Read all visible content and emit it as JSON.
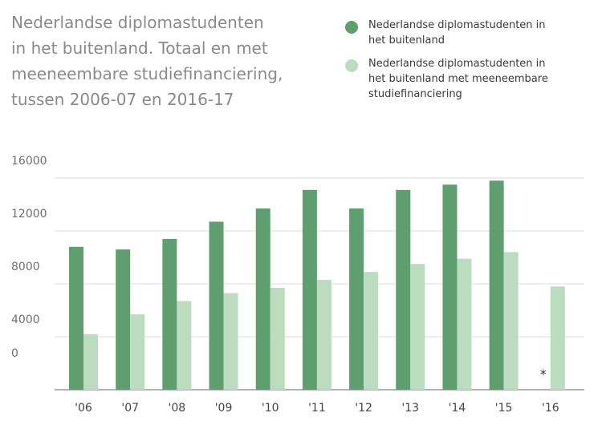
{
  "title": "Nederlandse diplomastudenten\nin het buitenland. Totaal en met\nmeeneembare studiefinanciering,\ntussen 2006-07 en 2016-17",
  "chart_data": {
    "type": "bar",
    "categories": [
      "'06",
      "'07",
      "'08",
      "'09",
      "'10",
      "'11",
      "'12",
      "'13",
      "'14",
      "'15",
      "'16"
    ],
    "series": [
      {
        "name": "Nederlandse diplomastudenten in\nhet buitenland",
        "color": "#5f9e6e",
        "values": [
          10800,
          10600,
          11400,
          12700,
          13700,
          15100,
          13700,
          15100,
          15500,
          15800,
          null
        ]
      },
      {
        "name": "Nederlandse diplomastudenten in\nhet buitenland met meeneembare\nstudiefinanciering",
        "color": "#bcdcbf",
        "values": [
          4200,
          5700,
          6700,
          7300,
          7700,
          8300,
          8900,
          9500,
          9900,
          10400,
          7800
        ]
      }
    ],
    "yticks": [
      0,
      4000,
      8000,
      12000,
      16000
    ],
    "ylim": [
      0,
      16000
    ],
    "grid": true,
    "legend_position": "top-right",
    "annotations": [
      {
        "category": "'16",
        "text": "*"
      }
    ]
  }
}
